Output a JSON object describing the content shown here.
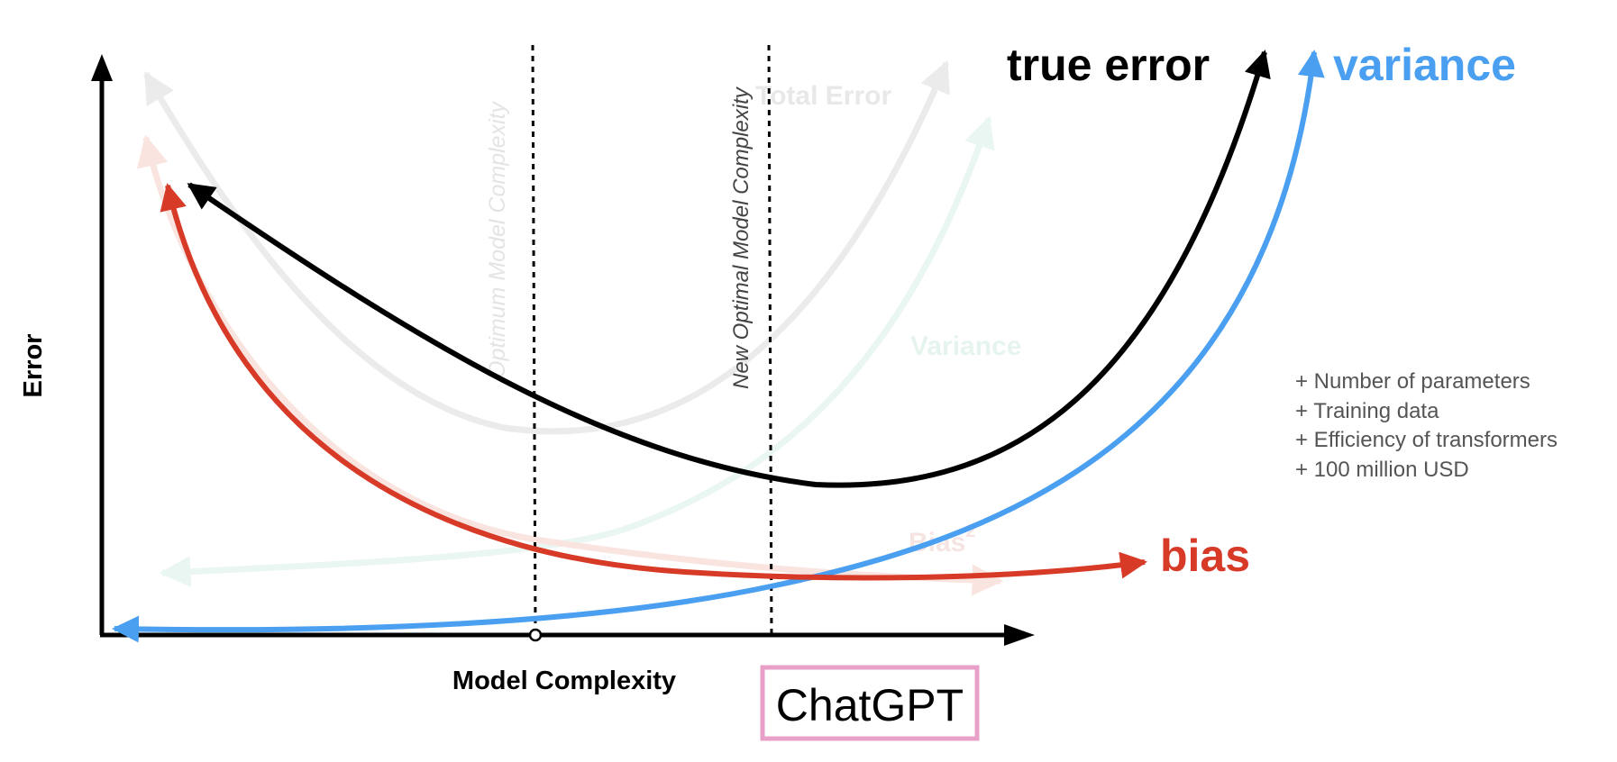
{
  "axes": {
    "y_label": "Error",
    "x_label": "Model Complexity"
  },
  "ghost_labels": {
    "optimum": "Optimum Model Complexity",
    "total_error": "Total Error",
    "variance": "Variance",
    "bias": "Bias",
    "bias_superscript": "2"
  },
  "vertical_labels": {
    "new_optimal": "New Optimal Model Complexity"
  },
  "curve_labels": {
    "true_error": "true error",
    "variance": "variance",
    "bias": "bias"
  },
  "factors": [
    "+ Number of parameters",
    "+ Training data",
    "+ Efficiency of transformers",
    "+ 100 million USD"
  ],
  "highlight_box": {
    "label": "ChatGPT"
  },
  "colors": {
    "true_error": "#000000",
    "variance": "#4a9ff0",
    "bias": "#d83a28",
    "ghost_total": "#ebebeb",
    "ghost_variance": "#eaf6f2",
    "ghost_bias": "#f9e4e0",
    "factor_text": "#555555",
    "box_border": "#e8a0c8"
  }
}
